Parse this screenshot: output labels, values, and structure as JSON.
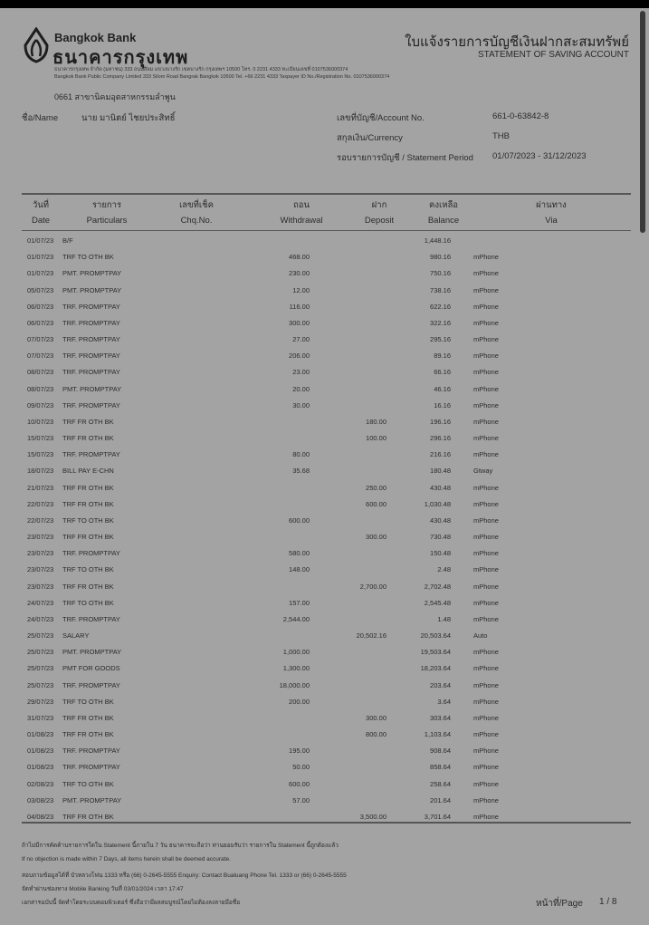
{
  "bank": {
    "name_en": "Bangkok Bank",
    "name_th": "ธนาคารกรุงเทพ",
    "address_th": "ธนาคารกรุงเทพ จำกัด (มหาชน) 333 ถนนสีลม แขวงบางรัก เขตบางรัก กรุงเทพฯ 10500 โทร. 0 2231 4333 ทะเบียนเลขที่ 0107536000374",
    "address_en": "Bangkok Bank Public Company Limited 333 Silom Road Bangrak Bangkok 10500 Tel. +66 2231 4333 Taxpayer ID No./Registration No. 0107536000374",
    "branch": "0661 สาขานิคมอุตสาหกรรมลำพูน"
  },
  "title": {
    "th": "ใบแจ้งรายการบัญชีเงินฝากสะสมทรัพย์",
    "en": "STATEMENT OF SAVING ACCOUNT"
  },
  "account": {
    "name_label": "ชื่อ/Name",
    "name_value": "นาย มานิตย์ ไชยประสิทธิ์",
    "account_no_label": "เลขที่บัญชี/Account No.",
    "account_no_value": "661-0-63842-8",
    "currency_label": "สกุลเงิน/Currency",
    "currency_value": "THB",
    "period_label": "รอบรายการบัญชี / Statement Period",
    "period_value": "01/07/2023 - 31/12/2023"
  },
  "table": {
    "headers_th": [
      "วันที่",
      "รายการ",
      "เลขที่เช็ค",
      "ถอน",
      "ฝาก",
      "คงเหลือ",
      "ผ่านทาง"
    ],
    "headers_en": [
      "Date",
      "Particulars",
      "Chq.No.",
      "Withdrawal",
      "Deposit",
      "Balance",
      "Via"
    ],
    "rows": [
      [
        "01/07/23",
        "B/F",
        "",
        "",
        "",
        "1,448.16",
        ""
      ],
      [
        "01/07/23",
        "TRF TO OTH BK",
        "",
        "468.00",
        "",
        "980.16",
        "mPhone"
      ],
      [
        "01/07/23",
        "PMT. PROMPTPAY",
        "",
        "230.00",
        "",
        "750.16",
        "mPhone"
      ],
      [
        "05/07/23",
        "PMT. PROMPTPAY",
        "",
        "12.00",
        "",
        "738.16",
        "mPhone"
      ],
      [
        "06/07/23",
        "TRF. PROMPTPAY",
        "",
        "116.00",
        "",
        "622.16",
        "mPhone"
      ],
      [
        "06/07/23",
        "TRF. PROMPTPAY",
        "",
        "300.00",
        "",
        "322.16",
        "mPhone"
      ],
      [
        "07/07/23",
        "TRF. PROMPTPAY",
        "",
        "27.00",
        "",
        "295.16",
        "mPhone"
      ],
      [
        "07/07/23",
        "TRF. PROMPTPAY",
        "",
        "206.00",
        "",
        "89.16",
        "mPhone"
      ],
      [
        "08/07/23",
        "TRF. PROMPTPAY",
        "",
        "23.00",
        "",
        "66.16",
        "mPhone"
      ],
      [
        "08/07/23",
        "PMT. PROMPTPAY",
        "",
        "20.00",
        "",
        "46.16",
        "mPhone"
      ],
      [
        "09/07/23",
        "TRF. PROMPTPAY",
        "",
        "30.00",
        "",
        "16.16",
        "mPhone"
      ],
      [
        "10/07/23",
        "TRF FR OTH BK",
        "",
        "",
        "180.00",
        "196.16",
        "mPhone"
      ],
      [
        "15/07/23",
        "TRF FR OTH BK",
        "",
        "",
        "100.00",
        "296.16",
        "mPhone"
      ],
      [
        "15/07/23",
        "TRF. PROMPTPAY",
        "",
        "80.00",
        "",
        "216.16",
        "mPhone"
      ],
      [
        "18/07/23",
        "BILL PAY E-CHN",
        "",
        "35.68",
        "",
        "180.48",
        "Gtway"
      ],
      [
        "21/07/23",
        "TRF FR OTH BK",
        "",
        "",
        "250.00",
        "430.48",
        "mPhone"
      ],
      [
        "22/07/23",
        "TRF FR OTH BK",
        "",
        "",
        "600.00",
        "1,030.48",
        "mPhone"
      ],
      [
        "22/07/23",
        "TRF TO OTH BK",
        "",
        "600.00",
        "",
        "430.48",
        "mPhone"
      ],
      [
        "23/07/23",
        "TRF FR OTH BK",
        "",
        "",
        "300.00",
        "730.48",
        "mPhone"
      ],
      [
        "23/07/23",
        "TRF. PROMPTPAY",
        "",
        "580.00",
        "",
        "150.48",
        "mPhone"
      ],
      [
        "23/07/23",
        "TRF TO OTH BK",
        "",
        "148.00",
        "",
        "2.48",
        "mPhone"
      ],
      [
        "23/07/23",
        "TRF FR OTH BK",
        "",
        "",
        "2,700.00",
        "2,702.48",
        "mPhone"
      ],
      [
        "24/07/23",
        "TRF TO OTH BK",
        "",
        "157.00",
        "",
        "2,545.48",
        "mPhone"
      ],
      [
        "24/07/23",
        "TRF. PROMPTPAY",
        "",
        "2,544.00",
        "",
        "1.48",
        "mPhone"
      ],
      [
        "25/07/23",
        "SALARY",
        "",
        "",
        "20,502.16",
        "20,503.64",
        "Auto"
      ],
      [
        "25/07/23",
        "PMT. PROMPTPAY",
        "",
        "1,000.00",
        "",
        "19,503.64",
        "mPhone"
      ],
      [
        "25/07/23",
        "PMT FOR GOODS",
        "",
        "1,300.00",
        "",
        "18,203.64",
        "mPhone"
      ],
      [
        "25/07/23",
        "TRF. PROMPTPAY",
        "",
        "18,000.00",
        "",
        "203.64",
        "mPhone"
      ],
      [
        "29/07/23",
        "TRF TO OTH BK",
        "",
        "200.00",
        "",
        "3.64",
        "mPhone"
      ],
      [
        "31/07/23",
        "TRF FR OTH BK",
        "",
        "",
        "300.00",
        "303.64",
        "mPhone"
      ],
      [
        "01/08/23",
        "TRF FR OTH BK",
        "",
        "",
        "800.00",
        "1,103.64",
        "mPhone"
      ],
      [
        "01/08/23",
        "TRF. PROMPTPAY",
        "",
        "195.00",
        "",
        "908.64",
        "mPhone"
      ],
      [
        "01/08/23",
        "TRF. PROMPTPAY",
        "",
        "50.00",
        "",
        "858.64",
        "mPhone"
      ],
      [
        "02/08/23",
        "TRF TO OTH BK",
        "",
        "600.00",
        "",
        "258.64",
        "mPhone"
      ],
      [
        "03/08/23",
        "PMT. PROMPTPAY",
        "",
        "57.00",
        "",
        "201.64",
        "mPhone"
      ],
      [
        "04/08/23",
        "TRF FR OTH BK",
        "",
        "",
        "3,500.00",
        "3,701.64",
        "mPhone"
      ]
    ]
  },
  "footer": {
    "lines": [
      "ถ้าไม่มีการคัดค้านรายการใดใน Statement นี้ภายใน 7 วัน ธนาคารจะถือว่า ท่านยอมรับว่า รายการใน Statement นี้ถูกต้องแล้ว",
      "If no objection is made within 7 Days, all items herein shall be deemed accurate.",
      "สอบถามข้อมูลได้ที่ บัวหลวงโฟน 1333 หรือ (66) 0-2645-5555 Enquiry: Contact Bualuang Phone Tel. 1333 or (66) 0-2645-5555",
      "จัดทำผ่านช่องทาง Mobile Banking วันที่ 03/01/2024 เวลา 17:47",
      "เอกสารฉบับนี้ จัดทำโดยระบบคอมพิวเตอร์ ซึ่งถือว่ามีผลสมบูรณ์โดยไม่ต้องลงลายมือชื่อ"
    ],
    "page_label": "หน้าที่/Page",
    "page_value": "1 / 8"
  },
  "colors": {
    "page": "#a3a3a3",
    "text": "#2b2b2b",
    "topbar": "#000000"
  }
}
